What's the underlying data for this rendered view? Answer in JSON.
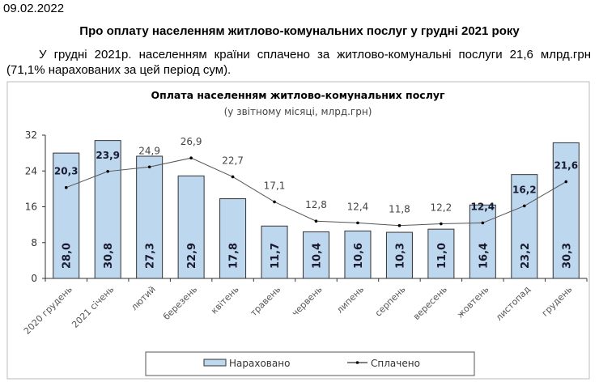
{
  "header": {
    "date": "09.02.2022",
    "title": "Про оплату населенням житлово-комунальних послуг у грудні 2021 року",
    "paragraph": "У грудні 2021р. населенням країни сплачено за житлово-комунальні послуги 21,6 млрд.грн (71,1%  нарахованих за цей період сум)."
  },
  "chart_data": {
    "type": "bar+line",
    "title": "Оплата населенням житлово-комунальних послуг",
    "subtitle": "(у звітному місяці, млрд.грн)",
    "categories": [
      "2020 грудень",
      "2021 січень",
      "лютий",
      "березень",
      "квітень",
      "травень",
      "червень",
      "липень",
      "серпень",
      "вересень",
      "жовтень",
      "листопад",
      "грудень"
    ],
    "series": [
      {
        "name": "Нараховано",
        "type": "bar",
        "color": "#bdd7ee",
        "values": [
          28.0,
          30.8,
          27.3,
          22.9,
          17.8,
          11.7,
          10.4,
          10.6,
          10.3,
          11.0,
          16.4,
          23.2,
          30.3
        ],
        "labels": [
          "28,0",
          "30,8",
          "27,3",
          "22,9",
          "17,8",
          "11,7",
          "10,4",
          "10,6",
          "10,3",
          "11,0",
          "16,4",
          "23,2",
          "30,3"
        ]
      },
      {
        "name": "Сплачено",
        "type": "line",
        "color": "#000000",
        "values": [
          20.3,
          23.9,
          24.9,
          26.9,
          22.7,
          17.1,
          12.8,
          12.4,
          11.8,
          12.2,
          12.4,
          16.2,
          21.6
        ],
        "labels": [
          "20,3",
          "23,9",
          "24,9",
          "26,9",
          "22,7",
          "17,1",
          "12,8",
          "12,4",
          "11,8",
          "12,2",
          "12,4",
          "16,2",
          "21,6"
        ]
      }
    ],
    "ylim": [
      0,
      32
    ],
    "yticks": [
      0,
      8,
      16,
      24,
      32
    ],
    "grid": false,
    "legend": "bottom"
  }
}
